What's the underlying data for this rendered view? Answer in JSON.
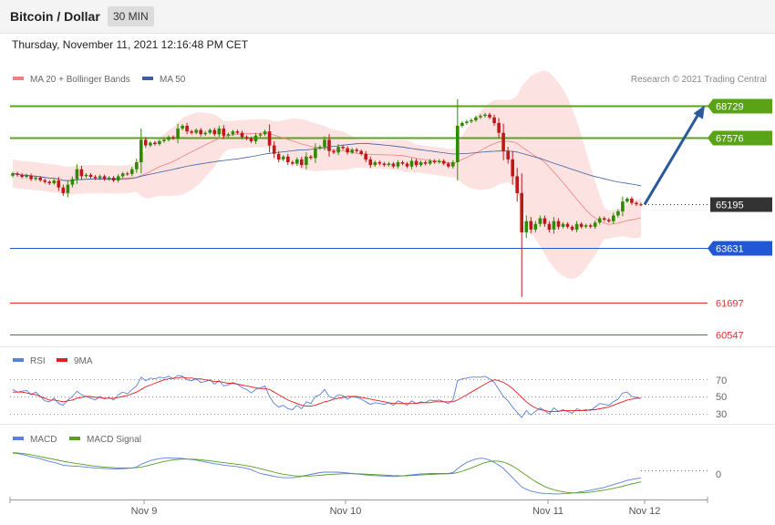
{
  "header": {
    "title": "Bitcoin / Dollar",
    "timeframe": "30 MIN"
  },
  "datetime": "Thursday, November 11, 2021 12:16:48 PM CET",
  "credit": "Research © 2021 Trading Central",
  "colors": {
    "green_level": "#5aa317",
    "blue_level": "#1f57d6",
    "red_level": "#e23030",
    "candle_up": "#2e8b00",
    "candle_down": "#c01818",
    "ma20": "#f08080",
    "band_fill": "#fde2e2",
    "ma50": "#3c5fa0",
    "arrow": "#2a5a9c",
    "rsi": "#5b7fdc",
    "rsi_ma": "#e02020",
    "macd": "#5b7fdc",
    "macd_signal": "#55a022"
  },
  "chart_data": [
    {
      "type": "candlestick",
      "name": "price",
      "legend": [
        {
          "label": "MA 20 + Bollinger Bands",
          "color": "#f08080"
        },
        {
          "label": "MA 50",
          "color": "#3c5fa0"
        }
      ],
      "ylim": [
        60200,
        69300
      ],
      "levels": [
        {
          "value": 68729,
          "label": "68729",
          "role": "resistance",
          "color": "#5aa317"
        },
        {
          "value": 67576,
          "label": "67576",
          "role": "resistance",
          "color": "#5aa317"
        },
        {
          "value": 65195,
          "label": "65195",
          "role": "last",
          "color": "#333333"
        },
        {
          "value": 63631,
          "label": "63631",
          "role": "pivot",
          "color": "#1f57d6"
        },
        {
          "value": 61697,
          "label": "61697",
          "role": "support",
          "color": "#e23030"
        },
        {
          "value": 60547,
          "label": "60547",
          "role": "support",
          "color": "#e23030"
        }
      ],
      "target_arrow": {
        "from_value": 65195,
        "to_value": 68729
      },
      "close": [
        66300,
        66250,
        66180,
        66230,
        66100,
        66150,
        66060,
        66000,
        65950,
        66050,
        65800,
        65600,
        65900,
        66100,
        66450,
        66200,
        66250,
        66180,
        66130,
        66200,
        66100,
        66150,
        66050,
        66200,
        66300,
        66280,
        66450,
        66700,
        67500,
        67300,
        67400,
        67350,
        67450,
        67500,
        67600,
        67550,
        67900,
        68000,
        67800,
        67750,
        67850,
        67700,
        67750,
        67850,
        67700,
        67900,
        67650,
        67700,
        67800,
        67750,
        67600,
        67550,
        67450,
        67650,
        67700,
        67800,
        67300,
        67000,
        66800,
        66900,
        66700,
        66650,
        66800,
        66600,
        66900,
        66850,
        67200,
        67250,
        67500,
        67100,
        67050,
        67250,
        67200,
        67050,
        67150,
        67100,
        67000,
        66800,
        66600,
        66700,
        66650,
        66600,
        66650,
        66550,
        66700,
        66650,
        66550,
        66750,
        66600,
        66700,
        66650,
        66750,
        66700,
        66750,
        66650,
        66550,
        66700,
        68000,
        68100,
        68150,
        68200,
        68300,
        68350,
        68400,
        68300,
        68100,
        67750,
        67100,
        66800,
        66200,
        65600,
        64200,
        64600,
        64300,
        64500,
        64700,
        64500,
        64300,
        64600,
        64400,
        64500,
        64400,
        64300,
        64500,
        64400,
        64450,
        64400,
        64550,
        64700,
        64650,
        64600,
        64800,
        64950,
        65300,
        65400,
        65250,
        65200,
        65195
      ]
    },
    {
      "type": "line",
      "name": "RSI",
      "legend": [
        {
          "label": "RSI",
          "color": "#5b7fdc"
        },
        {
          "label": "9MA",
          "color": "#e02020"
        }
      ],
      "y_ticks": [
        "70",
        "50",
        "30"
      ],
      "ylim": [
        22,
        78
      ],
      "rsi": [
        58,
        55,
        56,
        57,
        52,
        55,
        50,
        45,
        44,
        48,
        42,
        40,
        46,
        50,
        56,
        52,
        50,
        48,
        46,
        50,
        47,
        49,
        46,
        52,
        55,
        53,
        58,
        62,
        72,
        68,
        71,
        70,
        72,
        71,
        73,
        70,
        74,
        73,
        69,
        68,
        70,
        66,
        67,
        69,
        64,
        68,
        62,
        63,
        66,
        64,
        60,
        58,
        54,
        58,
        60,
        62,
        50,
        42,
        38,
        40,
        36,
        35,
        40,
        36,
        44,
        42,
        50,
        52,
        58,
        50,
        48,
        52,
        51,
        47,
        50,
        49,
        47,
        44,
        41,
        43,
        42,
        41,
        43,
        40,
        45,
        43,
        40,
        45,
        42,
        44,
        43,
        46,
        45,
        46,
        44,
        42,
        46,
        68,
        70,
        71,
        72,
        72,
        72,
        73,
        70,
        66,
        58,
        50,
        45,
        38,
        32,
        26,
        34,
        29,
        33,
        37,
        34,
        30,
        37,
        33,
        35,
        33,
        31,
        36,
        34,
        35,
        34,
        38,
        42,
        41,
        40,
        44,
        47,
        54,
        55,
        50,
        49,
        48
      ],
      "rsi_ma": [
        55,
        55,
        55,
        54,
        53,
        52,
        50,
        48,
        46,
        46,
        45,
        44,
        45,
        46,
        48,
        49,
        50,
        50,
        49,
        49,
        48,
        48,
        48,
        49,
        50,
        51,
        53,
        55,
        58,
        61,
        63,
        65,
        67,
        69,
        70,
        71,
        71,
        72,
        71,
        71,
        70,
        70,
        69,
        68,
        67,
        67,
        66,
        65,
        65,
        64,
        63,
        62,
        61,
        60,
        59,
        59,
        58,
        55,
        52,
        49,
        46,
        44,
        42,
        40,
        39,
        39,
        40,
        42,
        44,
        45,
        47,
        48,
        49,
        50,
        50,
        50,
        49,
        48,
        47,
        46,
        45,
        44,
        43,
        42,
        42,
        42,
        42,
        42,
        42,
        43,
        43,
        43,
        44,
        44,
        44,
        44,
        44,
        46,
        49,
        52,
        55,
        58,
        61,
        64,
        67,
        69,
        68,
        66,
        63,
        59,
        54,
        49,
        44,
        40,
        37,
        35,
        34,
        33,
        33,
        33,
        34,
        34,
        34,
        34,
        34,
        34,
        35,
        35,
        36,
        37,
        38,
        40,
        42,
        44,
        46,
        47,
        48,
        48
      ]
    },
    {
      "type": "line",
      "name": "MACD",
      "legend": [
        {
          "label": "MACD",
          "color": "#5b7fdc"
        },
        {
          "label": "MACD Signal",
          "color": "#55a022"
        }
      ],
      "y_ticks": [
        "0"
      ],
      "ylim": [
        -620,
        520
      ],
      "macd": [
        380,
        370,
        350,
        330,
        300,
        280,
        260,
        230,
        200,
        180,
        150,
        120,
        110,
        100,
        100,
        90,
        80,
        70,
        60,
        55,
        50,
        45,
        40,
        40,
        45,
        50,
        60,
        80,
        140,
        180,
        220,
        240,
        260,
        270,
        280,
        270,
        270,
        265,
        250,
        240,
        230,
        210,
        190,
        170,
        150,
        140,
        120,
        110,
        100,
        90,
        70,
        50,
        20,
        -20,
        -60,
        -80,
        -100,
        -120,
        -140,
        -150,
        -150,
        -150,
        -140,
        -120,
        -100,
        -80,
        -60,
        -40,
        -30,
        -30,
        -30,
        -30,
        -40,
        -50,
        -60,
        -70,
        -80,
        -90,
        -100,
        -105,
        -110,
        -115,
        -120,
        -125,
        -120,
        -110,
        -100,
        -90,
        -80,
        -70,
        -65,
        -60,
        -60,
        -60,
        -60,
        -60,
        -40,
        40,
        120,
        180,
        220,
        250,
        270,
        260,
        230,
        180,
        120,
        50,
        -50,
        -150,
        -250,
        -350,
        -400,
        -440,
        -460,
        -480,
        -490,
        -495,
        -500,
        -500,
        -495,
        -490,
        -480,
        -470,
        -455,
        -440,
        -420,
        -400,
        -380,
        -360,
        -330,
        -300,
        -270,
        -240,
        -210,
        -190,
        -170,
        -160
      ]
    }
  ],
  "signal": [
    390,
    385,
    375,
    360,
    345,
    325,
    305,
    285,
    265,
    245,
    225,
    205,
    185,
    170,
    155,
    140,
    125,
    112,
    100,
    90,
    80,
    72,
    65,
    60,
    58,
    58,
    60,
    65,
    80,
    100,
    125,
    150,
    175,
    200,
    220,
    235,
    245,
    250,
    250,
    248,
    244,
    236,
    226,
    214,
    200,
    188,
    175,
    162,
    150,
    138,
    125,
    110,
    92,
    70,
    45,
    20,
    -5,
    -30,
    -55,
    -75,
    -92,
    -105,
    -112,
    -115,
    -115,
    -112,
    -106,
    -98,
    -90,
    -82,
    -75,
    -69,
    -66,
    -64,
    -64,
    -66,
    -69,
    -73,
    -78,
    -83,
    -88,
    -94,
    -100,
    -105,
    -108,
    -109,
    -108,
    -104,
    -98,
    -92,
    -86,
    -80,
    -75,
    -71,
    -68,
    -65,
    -60,
    -40,
    -10,
    25,
    60,
    100,
    140,
    175,
    200,
    210,
    205,
    185,
    150,
    100,
    40,
    -30,
    -100,
    -170,
    -230,
    -290,
    -340,
    -380,
    -410,
    -435,
    -455,
    -468,
    -476,
    -478,
    -476,
    -470,
    -460,
    -448,
    -434,
    -418,
    -400,
    -380,
    -358,
    -335,
    -310,
    -285,
    -262,
    -240
  ],
  "x_axis": {
    "ticks": [
      {
        "label": "Nov 9"
      },
      {
        "label": "Nov 10"
      },
      {
        "label": "Nov 11"
      },
      {
        "label": "Nov 12"
      }
    ]
  }
}
